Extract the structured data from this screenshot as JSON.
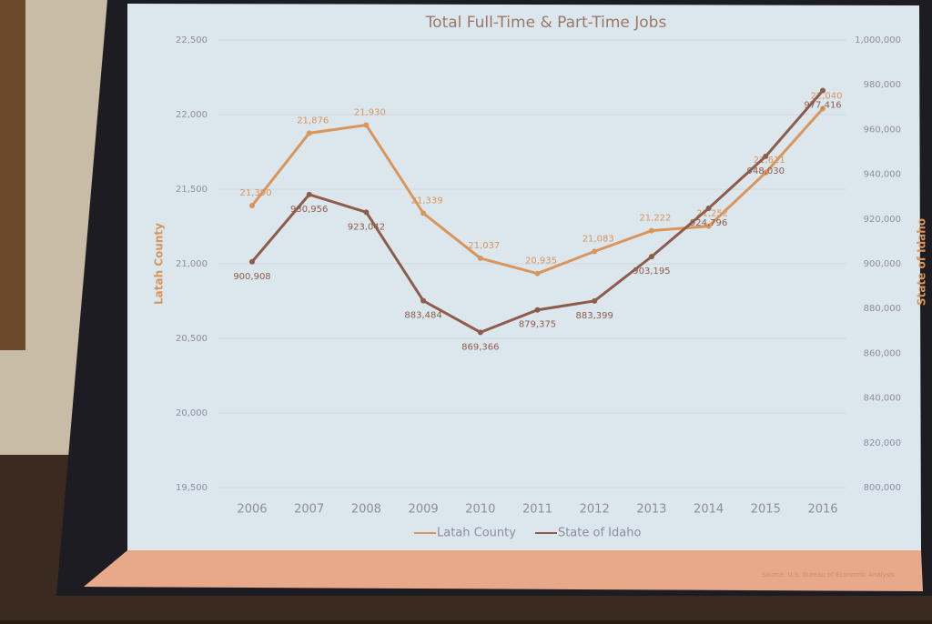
{
  "chart_data": {
    "type": "line",
    "title": "Total Full-Time & Part-Time Jobs",
    "ylabel": "Latah County",
    "y2label": "State of Idaho",
    "source": "Source: U.S. Bureau of Economic Analysis",
    "categories": [
      "2006",
      "2007",
      "2008",
      "2009",
      "2010",
      "2011",
      "2012",
      "2013",
      "2014",
      "2015",
      "2016"
    ],
    "series": [
      {
        "name": "Latah County",
        "color": "#d8955c",
        "values": [
          21390,
          21876,
          21930,
          21339,
          21037,
          20935,
          21083,
          21222,
          21252,
          21611,
          22040
        ],
        "value_labels": [
          "21,390",
          "21,876",
          "21,930",
          "21,339",
          "21,037",
          "20,935",
          "21,083",
          "21,222",
          "21,252",
          "21,611",
          "22,040"
        ]
      },
      {
        "name": "State of Idaho",
        "color": "#8d5c4a",
        "axis": "y2",
        "values": [
          900908,
          930956,
          923042,
          883484,
          869366,
          879375,
          883399,
          903195,
          924796,
          948030,
          977416
        ],
        "value_labels": [
          "900,908",
          "930,956",
          "923,042",
          "883,484",
          "869,366",
          "879,375",
          "883,399",
          "903,195",
          "924,796",
          "948,030",
          "977,416"
        ]
      }
    ],
    "ylim": [
      19500,
      22500
    ],
    "yticks": [
      {
        "value": 19500,
        "label": "19,500"
      },
      {
        "value": 20000,
        "label": "20,000"
      },
      {
        "value": 20500,
        "label": "20,500"
      },
      {
        "value": 21000,
        "label": "21,000"
      },
      {
        "value": 21500,
        "label": "21,500"
      },
      {
        "value": 22000,
        "label": "22,000"
      },
      {
        "value": 22500,
        "label": "22,500"
      }
    ],
    "y2lim": [
      800000,
      1000000
    ],
    "y2ticks": [
      {
        "value": 800000,
        "label": "800,000"
      },
      {
        "value": 820000,
        "label": "820,000"
      },
      {
        "value": 840000,
        "label": "840,000"
      },
      {
        "value": 860000,
        "label": "860,000"
      },
      {
        "value": 880000,
        "label": "880,000"
      },
      {
        "value": 900000,
        "label": "900,000"
      },
      {
        "value": 920000,
        "label": "920,000"
      },
      {
        "value": 940000,
        "label": "940,000"
      },
      {
        "value": 960000,
        "label": "960,000"
      },
      {
        "value": 980000,
        "label": "980,000"
      },
      {
        "value": 1000000,
        "label": "1,000,000"
      }
    ],
    "grid": true,
    "legend": "bottom"
  }
}
